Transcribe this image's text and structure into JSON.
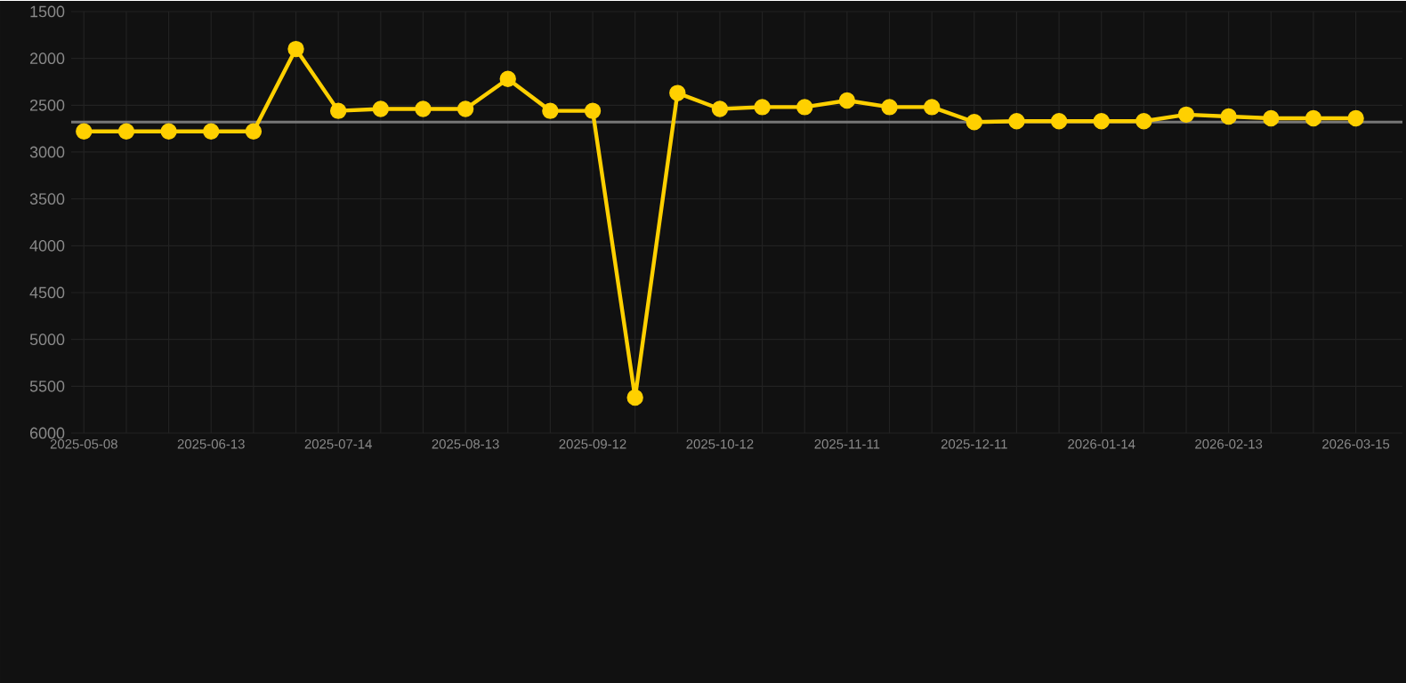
{
  "chart_data": {
    "type": "line",
    "categories": [
      "2025-05-08",
      null,
      null,
      "2025-06-13",
      null,
      null,
      "2025-07-14",
      null,
      null,
      "2025-08-13",
      null,
      null,
      "2025-09-12",
      null,
      null,
      "2025-10-12",
      null,
      null,
      "2025-11-11",
      null,
      null,
      "2025-12-11",
      null,
      null,
      "2026-01-14",
      null,
      null,
      "2026-02-13",
      null,
      null,
      "2026-03-15"
    ],
    "series": [
      {
        "color": "#ffd000",
        "values": [
          2780,
          2780,
          2780,
          2780,
          2780,
          1900,
          2560,
          2540,
          2540,
          2540,
          2220,
          2560,
          2560,
          5620,
          2370,
          2540,
          2520,
          2520,
          2450,
          2520,
          2520,
          2680,
          2670,
          2670,
          2670,
          2670,
          2600,
          2620,
          2640,
          2640,
          2640
        ]
      }
    ],
    "ylim": [
      6000,
      1500
    ],
    "yticks": [
      1500,
      2000,
      2500,
      3000,
      3500,
      4000,
      4500,
      5000,
      5500,
      6000
    ],
    "ref_lines": [
      {
        "axis": "y",
        "value": 2680,
        "color": "#777777"
      }
    ],
    "grid": true,
    "marker": "circle",
    "line_style": "solid"
  }
}
